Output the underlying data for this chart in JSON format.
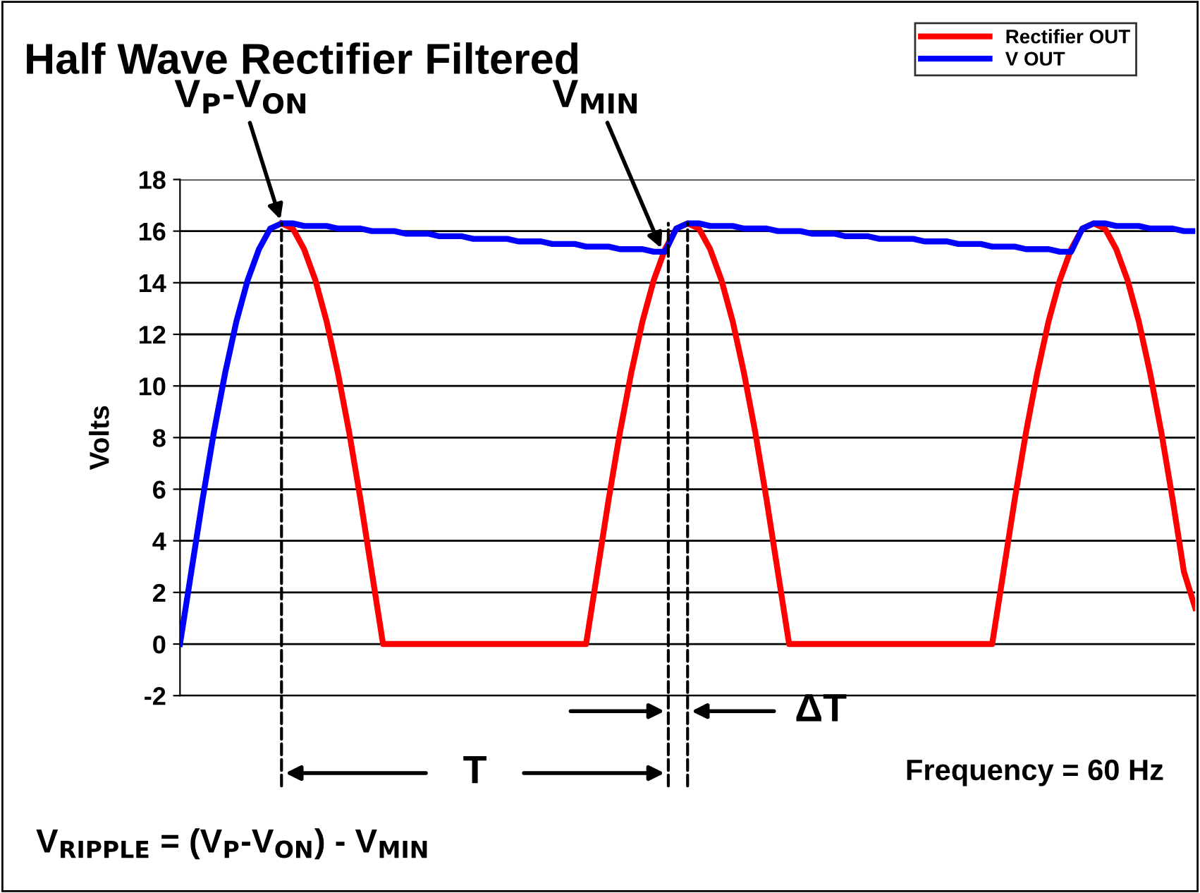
{
  "chart_data": {
    "type": "line",
    "title": "Half Wave Rectifier Filtered",
    "ylabel": "Volts",
    "categories": [
      null,
      null,
      null,
      null,
      null,
      null,
      null,
      null,
      null,
      null,
      null,
      null,
      null,
      null,
      null,
      null,
      null,
      null,
      null,
      null,
      null,
      null,
      null,
      null,
      null,
      null,
      null,
      null,
      null,
      null,
      null,
      null,
      null,
      null,
      null,
      null,
      null,
      null,
      null,
      null,
      null,
      null,
      null,
      null,
      null,
      null,
      null,
      null,
      null,
      null,
      null,
      null,
      null,
      null,
      null,
      null,
      null,
      null,
      null,
      null,
      null,
      null,
      null,
      null,
      null,
      null,
      null,
      null,
      null,
      null,
      null,
      null,
      null,
      null,
      null,
      null,
      null,
      null,
      null,
      null,
      null,
      null,
      null,
      null,
      null,
      null,
      null,
      null,
      null,
      null,
      null
    ],
    "series": [
      {
        "name": "Rectifier OUT",
        "color": "#ff0000",
        "values": [
          null,
          null,
          null,
          null,
          null,
          null,
          null,
          null,
          null,
          16.3,
          16.1,
          15.3,
          14.1,
          12.5,
          10.5,
          8.2,
          5.6,
          2.8,
          0,
          0,
          0,
          0,
          0,
          0,
          0,
          0,
          0,
          0,
          0,
          0,
          0,
          0,
          0,
          0,
          0,
          0,
          0,
          2.8,
          5.6,
          8.2,
          10.5,
          12.5,
          14.1,
          15.3,
          16.1,
          16.3,
          16.1,
          15.3,
          14.1,
          12.5,
          10.5,
          8.2,
          5.6,
          2.8,
          0,
          0,
          0,
          0,
          0,
          0,
          0,
          0,
          0,
          0,
          0,
          0,
          0,
          0,
          0,
          0,
          0,
          0,
          0,
          2.8,
          5.6,
          8.2,
          10.5,
          12.5,
          14.1,
          15.3,
          16.1,
          16.3,
          16.1,
          15.3,
          14.1,
          12.5,
          10.5,
          8.2,
          5.6,
          2.8,
          1.4
        ]
      },
      {
        "name": "V OUT",
        "color": "#0000ff",
        "values": [
          0,
          2.8,
          5.6,
          8.2,
          10.5,
          12.5,
          14.1,
          15.3,
          16.1,
          16.3,
          16.3,
          16.2,
          16.2,
          16.2,
          16.1,
          16.1,
          16.1,
          16.0,
          16.0,
          16.0,
          15.9,
          15.9,
          15.9,
          15.8,
          15.8,
          15.8,
          15.7,
          15.7,
          15.7,
          15.7,
          15.6,
          15.6,
          15.6,
          15.5,
          15.5,
          15.5,
          15.4,
          15.4,
          15.4,
          15.3,
          15.3,
          15.3,
          15.2,
          15.2,
          16.1,
          16.3,
          16.3,
          16.2,
          16.2,
          16.2,
          16.1,
          16.1,
          16.1,
          16.0,
          16.0,
          16.0,
          15.9,
          15.9,
          15.9,
          15.8,
          15.8,
          15.8,
          15.7,
          15.7,
          15.7,
          15.7,
          15.6,
          15.6,
          15.6,
          15.5,
          15.5,
          15.5,
          15.4,
          15.4,
          15.4,
          15.3,
          15.3,
          15.3,
          15.2,
          15.2,
          16.1,
          16.3,
          16.3,
          16.2,
          16.2,
          16.2,
          16.1,
          16.1,
          16.1,
          16.0,
          16.0
        ]
      }
    ],
    "ylim": [
      -2,
      18
    ],
    "yticks": [
      -2,
      0,
      2,
      4,
      6,
      8,
      10,
      12,
      14,
      16,
      18
    ],
    "tick_labels": "y",
    "grid": "y",
    "legend": "top right",
    "line_style": "solid",
    "marker": "none",
    "annotations": [
      "V$_{P}$-V$_{ON}$",
      "V$_{MIN}$",
      "T",
      "ΔT",
      "Frequency = 60 Hz",
      "V$_{RIPPLE}$ = (V$_{P}$-V$_{ON}$) - V$_{MIN}$"
    ]
  }
}
